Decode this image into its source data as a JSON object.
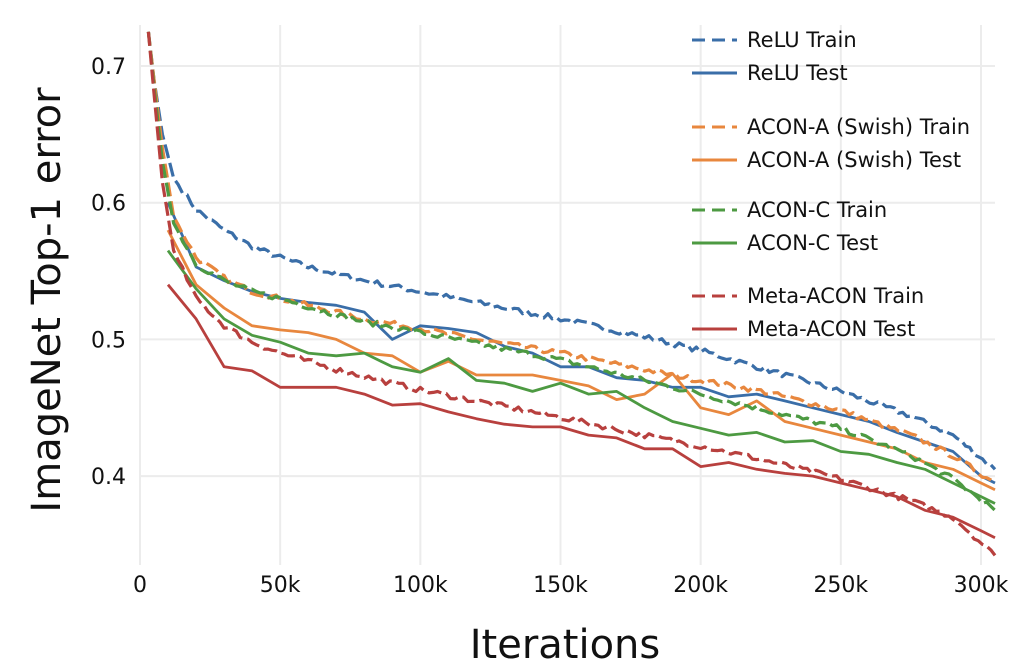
{
  "chart_data": {
    "type": "line",
    "title": "",
    "xlabel": "Iterations",
    "ylabel": "ImageNet Top-1 error",
    "xlim": [
      0,
      305000
    ],
    "ylim": [
      0.335,
      0.73
    ],
    "grid": true,
    "legend_position": "top-right",
    "x_ticks": [
      {
        "value": 0,
        "label": "0"
      },
      {
        "value": 50000,
        "label": "50k"
      },
      {
        "value": 100000,
        "label": "100k"
      },
      {
        "value": 150000,
        "label": "150k"
      },
      {
        "value": 200000,
        "label": "200k"
      },
      {
        "value": 250000,
        "label": "250k"
      },
      {
        "value": 300000,
        "label": "300k"
      }
    ],
    "y_ticks": [
      {
        "value": 0.4,
        "label": "0.4"
      },
      {
        "value": 0.5,
        "label": "0.5"
      },
      {
        "value": 0.6,
        "label": "0.6"
      },
      {
        "value": 0.7,
        "label": "0.7"
      }
    ],
    "series": [
      {
        "name": "ReLU Train",
        "color": "#3a6ea8",
        "dash": true,
        "x": [
          3000,
          5000,
          8000,
          12000,
          20000,
          30000,
          40000,
          50000,
          60000,
          70000,
          80000,
          100000,
          120000,
          150000,
          180000,
          200000,
          220000,
          250000,
          275000,
          290000,
          305000
        ],
        "y": [
          0.725,
          0.69,
          0.65,
          0.618,
          0.595,
          0.58,
          0.568,
          0.56,
          0.553,
          0.548,
          0.543,
          0.535,
          0.527,
          0.515,
          0.502,
          0.492,
          0.48,
          0.462,
          0.444,
          0.43,
          0.405
        ]
      },
      {
        "name": "ReLU Test",
        "color": "#3a6ea8",
        "dash": false,
        "x": [
          10000,
          20000,
          30000,
          40000,
          50000,
          60000,
          70000,
          80000,
          90000,
          100000,
          110000,
          120000,
          130000,
          140000,
          150000,
          160000,
          170000,
          180000,
          190000,
          200000,
          210000,
          220000,
          230000,
          240000,
          250000,
          260000,
          270000,
          280000,
          290000,
          300000,
          305000
        ],
        "y": [
          0.6,
          0.553,
          0.543,
          0.535,
          0.53,
          0.527,
          0.525,
          0.52,
          0.5,
          0.51,
          0.508,
          0.505,
          0.495,
          0.49,
          0.48,
          0.48,
          0.472,
          0.47,
          0.465,
          0.465,
          0.458,
          0.46,
          0.455,
          0.45,
          0.445,
          0.44,
          0.432,
          0.425,
          0.418,
          0.4,
          0.395
        ]
      },
      {
        "name": "ACON-A (Swish) Train",
        "color": "#e8873e",
        "dash": true,
        "x": [
          3000,
          5000,
          8000,
          12000,
          20000,
          30000,
          40000,
          50000,
          60000,
          70000,
          80000,
          100000,
          120000,
          150000,
          180000,
          200000,
          220000,
          250000,
          275000,
          290000,
          305000
        ],
        "y": [
          0.725,
          0.69,
          0.64,
          0.59,
          0.56,
          0.545,
          0.535,
          0.53,
          0.525,
          0.52,
          0.515,
          0.508,
          0.5,
          0.49,
          0.478,
          0.47,
          0.463,
          0.448,
          0.43,
          0.415,
          0.395
        ]
      },
      {
        "name": "ACON-A (Swish) Test",
        "color": "#e8873e",
        "dash": false,
        "x": [
          10000,
          20000,
          30000,
          40000,
          50000,
          60000,
          70000,
          80000,
          90000,
          100000,
          110000,
          120000,
          130000,
          140000,
          150000,
          160000,
          170000,
          180000,
          190000,
          200000,
          210000,
          220000,
          230000,
          240000,
          250000,
          260000,
          270000,
          280000,
          290000,
          300000,
          305000
        ],
        "y": [
          0.58,
          0.54,
          0.523,
          0.51,
          0.507,
          0.505,
          0.5,
          0.49,
          0.488,
          0.476,
          0.484,
          0.474,
          0.474,
          0.474,
          0.47,
          0.466,
          0.456,
          0.46,
          0.475,
          0.45,
          0.445,
          0.455,
          0.44,
          0.435,
          0.43,
          0.425,
          0.42,
          0.41,
          0.405,
          0.395,
          0.39
        ]
      },
      {
        "name": "ACON-C Train",
        "color": "#4d9a42",
        "dash": true,
        "x": [
          3000,
          5000,
          8000,
          12000,
          20000,
          30000,
          40000,
          50000,
          60000,
          70000,
          80000,
          100000,
          120000,
          150000,
          180000,
          200000,
          220000,
          250000,
          275000,
          290000,
          305000
        ],
        "y": [
          0.725,
          0.685,
          0.63,
          0.585,
          0.555,
          0.543,
          0.535,
          0.53,
          0.524,
          0.518,
          0.513,
          0.505,
          0.497,
          0.485,
          0.47,
          0.46,
          0.45,
          0.435,
          0.415,
          0.398,
          0.375
        ]
      },
      {
        "name": "ACON-C Test",
        "color": "#4d9a42",
        "dash": false,
        "x": [
          10000,
          20000,
          30000,
          40000,
          50000,
          60000,
          70000,
          80000,
          90000,
          100000,
          110000,
          120000,
          130000,
          140000,
          150000,
          160000,
          170000,
          180000,
          190000,
          200000,
          210000,
          220000,
          230000,
          240000,
          250000,
          260000,
          270000,
          280000,
          290000,
          300000,
          305000
        ],
        "y": [
          0.565,
          0.537,
          0.515,
          0.503,
          0.498,
          0.49,
          0.488,
          0.49,
          0.48,
          0.476,
          0.486,
          0.47,
          0.468,
          0.462,
          0.468,
          0.46,
          0.462,
          0.45,
          0.44,
          0.435,
          0.43,
          0.432,
          0.425,
          0.426,
          0.418,
          0.416,
          0.41,
          0.405,
          0.395,
          0.385,
          0.38
        ]
      },
      {
        "name": "Meta-ACON Train",
        "color": "#b8403e",
        "dash": true,
        "x": [
          3000,
          5000,
          8000,
          12000,
          20000,
          30000,
          40000,
          50000,
          60000,
          70000,
          80000,
          100000,
          120000,
          150000,
          180000,
          200000,
          220000,
          250000,
          275000,
          290000,
          305000
        ],
        "y": [
          0.725,
          0.68,
          0.615,
          0.565,
          0.53,
          0.51,
          0.498,
          0.49,
          0.484,
          0.478,
          0.473,
          0.463,
          0.455,
          0.443,
          0.43,
          0.422,
          0.413,
          0.398,
          0.382,
          0.37,
          0.342
        ]
      },
      {
        "name": "Meta-ACON Test",
        "color": "#b8403e",
        "dash": false,
        "x": [
          10000,
          20000,
          30000,
          40000,
          50000,
          60000,
          70000,
          80000,
          90000,
          100000,
          110000,
          120000,
          130000,
          140000,
          150000,
          160000,
          170000,
          180000,
          190000,
          200000,
          210000,
          220000,
          230000,
          240000,
          250000,
          260000,
          270000,
          280000,
          290000,
          300000,
          305000
        ],
        "y": [
          0.54,
          0.515,
          0.48,
          0.477,
          0.465,
          0.465,
          0.465,
          0.46,
          0.452,
          0.453,
          0.447,
          0.442,
          0.438,
          0.436,
          0.436,
          0.43,
          0.428,
          0.42,
          0.42,
          0.407,
          0.41,
          0.405,
          0.402,
          0.4,
          0.395,
          0.39,
          0.385,
          0.375,
          0.37,
          0.36,
          0.355
        ]
      }
    ]
  }
}
